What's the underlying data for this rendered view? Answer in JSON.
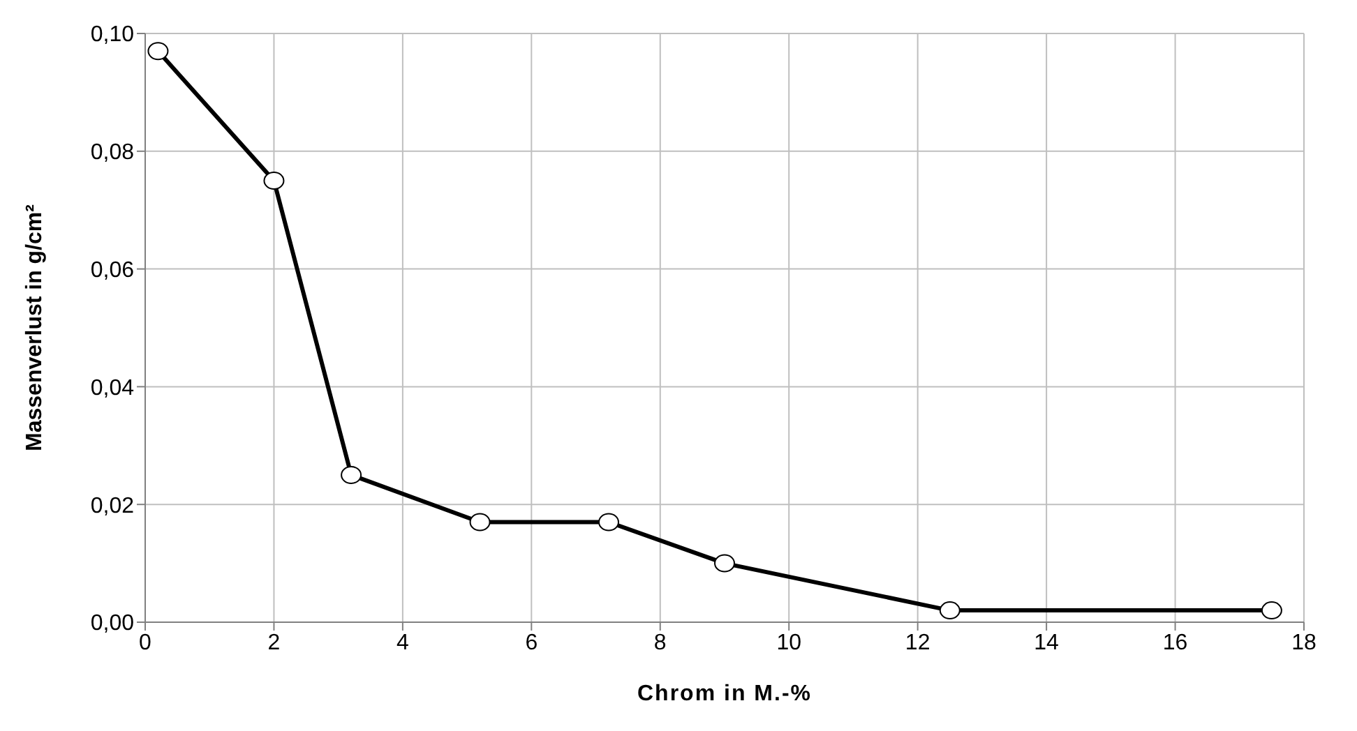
{
  "chart_data": {
    "type": "line",
    "xlabel": "Chrom in M.-%",
    "ylabel": "Massenverlust in g/cm²",
    "x": [
      0.2,
      2,
      3.2,
      5.2,
      7.2,
      9,
      12.5,
      17.5
    ],
    "series": [
      {
        "color": "#000000",
        "values": [
          0.097,
          0.075,
          0.025,
          0.017,
          0.017,
          0.01,
          0.002,
          0.002
        ]
      }
    ],
    "xlim": [
      0,
      18
    ],
    "xticks": [
      0,
      2,
      4,
      6,
      8,
      10,
      12,
      14,
      16,
      18
    ],
    "ylim": [
      0,
      0.1
    ],
    "yticks": [
      {
        "value": 0,
        "label": "0,00"
      },
      {
        "value": 0.02,
        "label": "0,02"
      },
      {
        "value": 0.04,
        "label": "0,04"
      },
      {
        "value": 0.06,
        "label": "0,06"
      },
      {
        "value": 0.08,
        "label": "0,08"
      },
      {
        "value": 0.1,
        "label": "0,10"
      }
    ],
    "grid": true,
    "marker": "circle",
    "line_style": "solid"
  }
}
